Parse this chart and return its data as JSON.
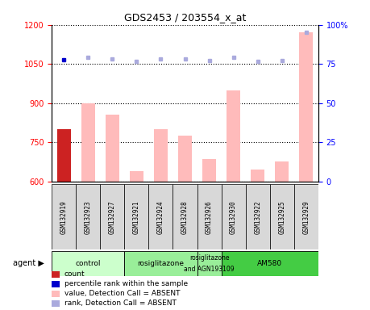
{
  "title": "GDS2453 / 203554_x_at",
  "samples": [
    "GSM132919",
    "GSM132923",
    "GSM132927",
    "GSM132921",
    "GSM132924",
    "GSM132928",
    "GSM132926",
    "GSM132930",
    "GSM132922",
    "GSM132925",
    "GSM132929"
  ],
  "bar_values": [
    800,
    900,
    857,
    640,
    800,
    775,
    685,
    950,
    645,
    675,
    1170
  ],
  "bar_colors": [
    "#cc2222",
    "#ffbbbb",
    "#ffbbbb",
    "#ffbbbb",
    "#ffbbbb",
    "#ffbbbb",
    "#ffbbbb",
    "#ffbbbb",
    "#ffbbbb",
    "#ffbbbb",
    "#ffbbbb"
  ],
  "rank_dots_left": [
    1065,
    1075,
    1068,
    1060,
    1068,
    1068,
    1063,
    1075,
    1060,
    1063,
    1170
  ],
  "rank_dot_colors": [
    "#0000cc",
    "#aaaadd",
    "#aaaadd",
    "#aaaadd",
    "#aaaadd",
    "#aaaadd",
    "#aaaadd",
    "#aaaadd",
    "#aaaadd",
    "#aaaadd",
    "#aaaadd"
  ],
  "ylim_left": [
    600,
    1200
  ],
  "ylim_right": [
    0,
    100
  ],
  "yticks_left": [
    600,
    750,
    900,
    1050,
    1200
  ],
  "yticks_right": [
    0,
    25,
    50,
    75,
    100
  ],
  "agent_groups": [
    {
      "label": "control",
      "start": 0,
      "end": 3,
      "color": "#ccffcc"
    },
    {
      "label": "rosiglitazone",
      "start": 3,
      "end": 6,
      "color": "#99ee99"
    },
    {
      "label": "rosiglitazone\nand AGN193109",
      "start": 6,
      "end": 7,
      "color": "#99ee99"
    },
    {
      "label": "AM580",
      "start": 7,
      "end": 11,
      "color": "#44cc44"
    }
  ],
  "legend_colors": [
    "#cc2222",
    "#0000cc",
    "#ffbbbb",
    "#aaaadd"
  ],
  "legend_labels": [
    "count",
    "percentile rank within the sample",
    "value, Detection Call = ABSENT",
    "rank, Detection Call = ABSENT"
  ]
}
